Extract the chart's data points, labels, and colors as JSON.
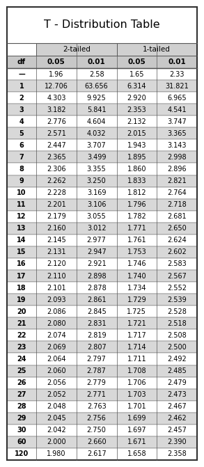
{
  "title": "T - Distribution Table",
  "col_headers": [
    "df",
    "0.05",
    "0.01",
    "0.05",
    "0.01"
  ],
  "rows": [
    [
      "—",
      "1.96",
      "2.58",
      "1.65",
      "2.33"
    ],
    [
      "1",
      "12.706",
      "63.656",
      "6.314",
      "31.821"
    ],
    [
      "2",
      "4.303",
      "9.925",
      "2.920",
      "6.965"
    ],
    [
      "3",
      "3.182",
      "5.841",
      "2.353",
      "4.541"
    ],
    [
      "4",
      "2.776",
      "4.604",
      "2.132",
      "3.747"
    ],
    [
      "5",
      "2.571",
      "4.032",
      "2.015",
      "3.365"
    ],
    [
      "6",
      "2.447",
      "3.707",
      "1.943",
      "3.143"
    ],
    [
      "7",
      "2.365",
      "3.499",
      "1.895",
      "2.998"
    ],
    [
      "8",
      "2.306",
      "3.355",
      "1.860",
      "2.896"
    ],
    [
      "9",
      "2.262",
      "3.250",
      "1.833",
      "2.821"
    ],
    [
      "10",
      "2.228",
      "3.169",
      "1.812",
      "2.764"
    ],
    [
      "11",
      "2.201",
      "3.106",
      "1.796",
      "2.718"
    ],
    [
      "12",
      "2.179",
      "3.055",
      "1.782",
      "2.681"
    ],
    [
      "13",
      "2.160",
      "3.012",
      "1.771",
      "2.650"
    ],
    [
      "14",
      "2.145",
      "2.977",
      "1.761",
      "2.624"
    ],
    [
      "15",
      "2.131",
      "2.947",
      "1.753",
      "2.602"
    ],
    [
      "16",
      "2.120",
      "2.921",
      "1.746",
      "2.583"
    ],
    [
      "17",
      "2.110",
      "2.898",
      "1.740",
      "2.567"
    ],
    [
      "18",
      "2.101",
      "2.878",
      "1.734",
      "2.552"
    ],
    [
      "19",
      "2.093",
      "2.861",
      "1.729",
      "2.539"
    ],
    [
      "20",
      "2.086",
      "2.845",
      "1.725",
      "2.528"
    ],
    [
      "21",
      "2.080",
      "2.831",
      "1.721",
      "2.518"
    ],
    [
      "22",
      "2.074",
      "2.819",
      "1.717",
      "2.508"
    ],
    [
      "23",
      "2.069",
      "2.807",
      "1.714",
      "2.500"
    ],
    [
      "24",
      "2.064",
      "2.797",
      "1.711",
      "2.492"
    ],
    [
      "25",
      "2.060",
      "2.787",
      "1.708",
      "2.485"
    ],
    [
      "26",
      "2.056",
      "2.779",
      "1.706",
      "2.479"
    ],
    [
      "27",
      "2.052",
      "2.771",
      "1.703",
      "2.473"
    ],
    [
      "28",
      "2.048",
      "2.763",
      "1.701",
      "2.467"
    ],
    [
      "29",
      "2.045",
      "2.756",
      "1.699",
      "2.462"
    ],
    [
      "30",
      "2.042",
      "2.750",
      "1.697",
      "2.457"
    ],
    [
      "60",
      "2.000",
      "2.660",
      "1.671",
      "2.390"
    ],
    [
      "120",
      "1.980",
      "2.617",
      "1.658",
      "2.358"
    ]
  ],
  "bg_white": "#ffffff",
  "bg_light_gray": "#d8d8d8",
  "bg_header_gray": "#c8c8c8",
  "bg_group_gray": "#d0d0d0",
  "border_color": "#555555",
  "outer_border": "#333333",
  "title_fontsize": 11.5,
  "group_fontsize": 7.5,
  "header_fontsize": 7.5,
  "data_fontsize": 7.0
}
